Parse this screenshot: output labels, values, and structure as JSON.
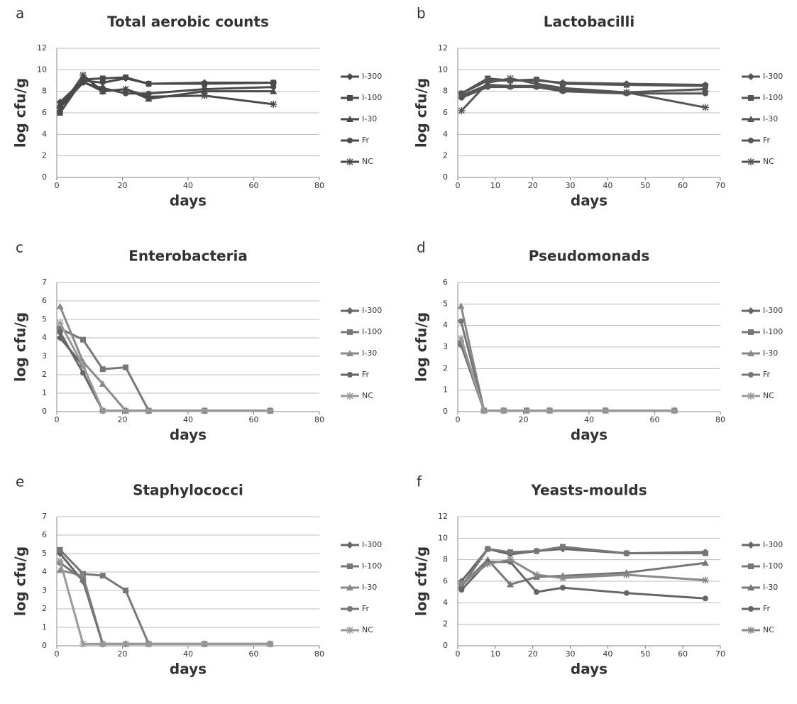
{
  "chart_data": [
    {
      "type": "line",
      "panel": "a",
      "title": "Total aerobic counts",
      "xlabel": "days",
      "ylabel": "log cfu/g",
      "x": [
        1,
        8,
        14,
        21,
        28,
        45,
        66
      ],
      "xlim": [
        0,
        80
      ],
      "xticks": [
        0,
        20,
        40,
        60,
        80
      ],
      "ylim": [
        0,
        12
      ],
      "yticks": [
        0,
        2,
        4,
        6,
        8,
        10,
        12
      ],
      "grid": true,
      "series": [
        {
          "name": "I-300",
          "color": "#4a4a4a",
          "values": [
            7.0,
            9.0,
            8.8,
            9.2,
            8.7,
            8.8,
            8.8
          ]
        },
        {
          "name": "I-100",
          "color": "#4a4a4a",
          "values": [
            6.0,
            9.1,
            9.2,
            9.3,
            8.7,
            8.7,
            8.8
          ]
        },
        {
          "name": "I-30",
          "color": "#4a4a4a",
          "values": [
            6.8,
            8.9,
            8.0,
            8.2,
            7.3,
            8.0,
            8.0
          ]
        },
        {
          "name": "Fr",
          "color": "#4a4a4a",
          "values": [
            6.5,
            8.8,
            8.3,
            7.8,
            7.8,
            8.2,
            8.4
          ]
        },
        {
          "name": "NC",
          "color": "#4a4a4a",
          "values": [
            6.4,
            9.5,
            8.0,
            8.2,
            7.5,
            7.6,
            6.8
          ]
        }
      ]
    },
    {
      "type": "line",
      "panel": "b",
      "title": "Lactobacilli",
      "xlabel": "days",
      "ylabel": "log cfu/g",
      "x": [
        1,
        8,
        14,
        21,
        28,
        45,
        66
      ],
      "xlim": [
        0,
        70
      ],
      "xticks": [
        0,
        10,
        20,
        30,
        40,
        50,
        60,
        70
      ],
      "ylim": [
        0,
        12
      ],
      "yticks": [
        0,
        2,
        4,
        6,
        8,
        10,
        12
      ],
      "grid": true,
      "series": [
        {
          "name": "I-300",
          "color": "#555555",
          "values": [
            7.8,
            9.0,
            9.0,
            9.0,
            8.8,
            8.7,
            8.6
          ]
        },
        {
          "name": "I-100",
          "color": "#555555",
          "values": [
            7.8,
            9.2,
            9.0,
            9.1,
            8.7,
            8.6,
            8.5
          ]
        },
        {
          "name": "I-30",
          "color": "#555555",
          "values": [
            7.6,
            8.6,
            8.5,
            8.5,
            8.1,
            7.9,
            8.2
          ]
        },
        {
          "name": "Fr",
          "color": "#555555",
          "values": [
            7.4,
            8.4,
            8.4,
            8.4,
            8.0,
            7.8,
            7.8
          ]
        },
        {
          "name": "NC",
          "color": "#555555",
          "values": [
            6.2,
            8.8,
            9.2,
            8.7,
            8.3,
            7.9,
            6.5
          ]
        }
      ]
    },
    {
      "type": "line",
      "panel": "c",
      "title": "Enterobacteria",
      "xlabel": "days",
      "ylabel": "log cfu/g",
      "x": [
        1,
        8,
        14,
        21,
        28,
        45,
        65
      ],
      "xlim": [
        0,
        80
      ],
      "xticks": [
        0,
        20,
        40,
        60,
        80
      ],
      "ylim": [
        0,
        7
      ],
      "yticks": [
        0,
        1,
        2,
        3,
        4,
        5,
        6,
        7
      ],
      "grid": true,
      "series": [
        {
          "name": "I-300",
          "color": "#666666",
          "values": [
            4.0,
            2.5,
            0.05,
            0.05,
            0.05,
            0.05,
            0.05
          ]
        },
        {
          "name": "I-100",
          "color": "#777777",
          "values": [
            4.5,
            3.9,
            2.3,
            2.4,
            0.05,
            0.05,
            0.05
          ]
        },
        {
          "name": "I-30",
          "color": "#8a8a8a",
          "values": [
            5.7,
            2.7,
            1.5,
            0.05,
            0.05,
            0.05,
            0.05
          ]
        },
        {
          "name": "Fr",
          "color": "#666666",
          "values": [
            4.3,
            2.1,
            0.05,
            0.05,
            0.05,
            0.05,
            0.05
          ]
        },
        {
          "name": "NC",
          "color": "#999999",
          "values": [
            4.8,
            2.5,
            0.05,
            0.05,
            0.05,
            0.05,
            0.05
          ]
        }
      ]
    },
    {
      "type": "line",
      "panel": "d",
      "title": "Pseudomonads",
      "xlabel": "days",
      "ylabel": "log cfu/g",
      "x": [
        1,
        8,
        14,
        21,
        28,
        45,
        66
      ],
      "xlim": [
        0,
        80
      ],
      "xticks": [
        0,
        20,
        40,
        60,
        80
      ],
      "ylim": [
        0,
        6
      ],
      "yticks": [
        0,
        1,
        2,
        3,
        4,
        5,
        6
      ],
      "grid": true,
      "series": [
        {
          "name": "I-300",
          "color": "#666666",
          "values": [
            3.1,
            0.05,
            0.05,
            0.05,
            0.05,
            0.05,
            0.05
          ]
        },
        {
          "name": "I-100",
          "color": "#777777",
          "values": [
            3.2,
            0.05,
            0.05,
            0.05,
            0.05,
            0.05,
            0.05
          ]
        },
        {
          "name": "I-30",
          "color": "#8a8a8a",
          "values": [
            4.9,
            0.05,
            0.05,
            0.05,
            0.05,
            0.05,
            0.05
          ]
        },
        {
          "name": "Fr",
          "color": "#777777",
          "values": [
            4.2,
            0.05,
            0.05,
            0.05,
            0.05,
            0.05,
            0.05
          ]
        },
        {
          "name": "NC",
          "color": "#999999",
          "values": [
            3.4,
            0.05,
            0.05,
            0.05,
            0.05,
            0.05,
            0.05
          ]
        }
      ]
    },
    {
      "type": "line",
      "panel": "e",
      "title": "Staphylococci",
      "xlabel": "days",
      "ylabel": "log cfu/g",
      "x": [
        1,
        8,
        14,
        21,
        28,
        45,
        65
      ],
      "xlim": [
        0,
        80
      ],
      "xticks": [
        0,
        20,
        40,
        60,
        80
      ],
      "ylim": [
        0,
        7
      ],
      "yticks": [
        0,
        1,
        2,
        3,
        4,
        5,
        6,
        7
      ],
      "grid": true,
      "series": [
        {
          "name": "I-300",
          "color": "#666666",
          "values": [
            5.0,
            3.5,
            0.1,
            0.1,
            0.1,
            0.1,
            0.1
          ]
        },
        {
          "name": "I-100",
          "color": "#777777",
          "values": [
            5.2,
            3.9,
            3.8,
            3.0,
            0.1,
            0.1,
            0.1
          ]
        },
        {
          "name": "I-30",
          "color": "#8a8a8a",
          "values": [
            4.1,
            3.8,
            0.1,
            0.1,
            0.1,
            0.1,
            0.1
          ]
        },
        {
          "name": "Fr",
          "color": "#777777",
          "values": [
            4.5,
            3.6,
            0.1,
            0.1,
            0.1,
            0.1,
            0.1
          ]
        },
        {
          "name": "NC",
          "color": "#999999",
          "values": [
            4.6,
            0.1,
            0.1,
            0.1,
            0.1,
            0.1,
            0.1
          ]
        }
      ]
    },
    {
      "type": "line",
      "panel": "f",
      "title": "Yeasts-moulds",
      "xlabel": "days",
      "ylabel": "log cfu/g",
      "x": [
        1,
        8,
        14,
        21,
        28,
        45,
        66
      ],
      "xlim": [
        0,
        70
      ],
      "xticks": [
        0,
        10,
        20,
        30,
        40,
        50,
        60,
        70
      ],
      "ylim": [
        0,
        12
      ],
      "yticks": [
        0,
        2,
        4,
        6,
        8,
        10,
        12
      ],
      "grid": true,
      "series": [
        {
          "name": "I-300",
          "color": "#666666",
          "values": [
            6.0,
            9.0,
            8.5,
            8.8,
            9.0,
            8.6,
            8.7
          ]
        },
        {
          "name": "I-100",
          "color": "#777777",
          "values": [
            5.5,
            9.0,
            8.7,
            8.8,
            9.2,
            8.6,
            8.6
          ]
        },
        {
          "name": "I-30",
          "color": "#777777",
          "values": [
            5.6,
            8.0,
            5.7,
            6.4,
            6.5,
            6.8,
            7.7
          ]
        },
        {
          "name": "Fr",
          "color": "#666666",
          "values": [
            5.2,
            7.8,
            7.8,
            5.0,
            5.4,
            4.9,
            4.4
          ]
        },
        {
          "name": "NC",
          "color": "#888888",
          "values": [
            5.8,
            7.6,
            8.0,
            6.6,
            6.3,
            6.6,
            6.1
          ]
        }
      ]
    }
  ]
}
